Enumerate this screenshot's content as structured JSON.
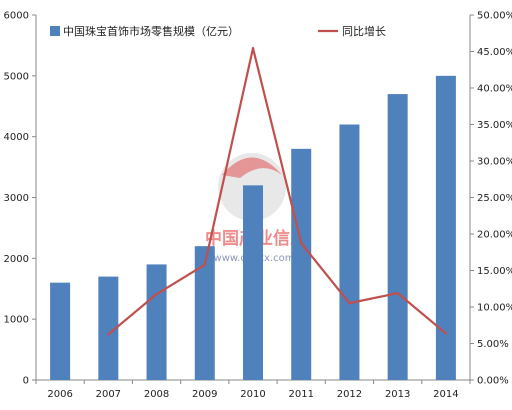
{
  "watermark": {
    "brand": "中国产业信息",
    "url": "www.chyxx.com"
  },
  "chart_data": {
    "type": "bar",
    "categories": [
      "2006",
      "2007",
      "2008",
      "2009",
      "2010",
      "2011",
      "2012",
      "2013",
      "2014"
    ],
    "series": [
      {
        "name": "中国珠宝首饰市场零售规模（亿元）",
        "type": "bar",
        "axis": "left",
        "color": "#4f81bd",
        "values": [
          1600,
          1700,
          1900,
          2200,
          3200,
          3800,
          4200,
          4700,
          5000
        ]
      },
      {
        "name": "同比增长",
        "type": "line",
        "axis": "right",
        "color": "#c0504d",
        "values": [
          null,
          0.0625,
          0.1176,
          0.1579,
          0.4545,
          0.1875,
          0.1053,
          0.119,
          0.0638
        ]
      }
    ],
    "y_left": {
      "min": 0,
      "max": 6000,
      "ticks": [
        0,
        1000,
        2000,
        3000,
        4000,
        5000,
        6000
      ]
    },
    "y_right": {
      "min": 0,
      "max": 0.5,
      "ticks": [
        0,
        0.05,
        0.1,
        0.15,
        0.2,
        0.25,
        0.3,
        0.35,
        0.4,
        0.45,
        0.5
      ],
      "tick_labels": [
        "0.00%",
        "5.00%",
        "10.00%",
        "15.00%",
        "20.00%",
        "25.00%",
        "30.00%",
        "35.00%",
        "40.00%",
        "45.00%",
        "50.00%"
      ]
    },
    "legend": "top-left",
    "grid": false
  }
}
